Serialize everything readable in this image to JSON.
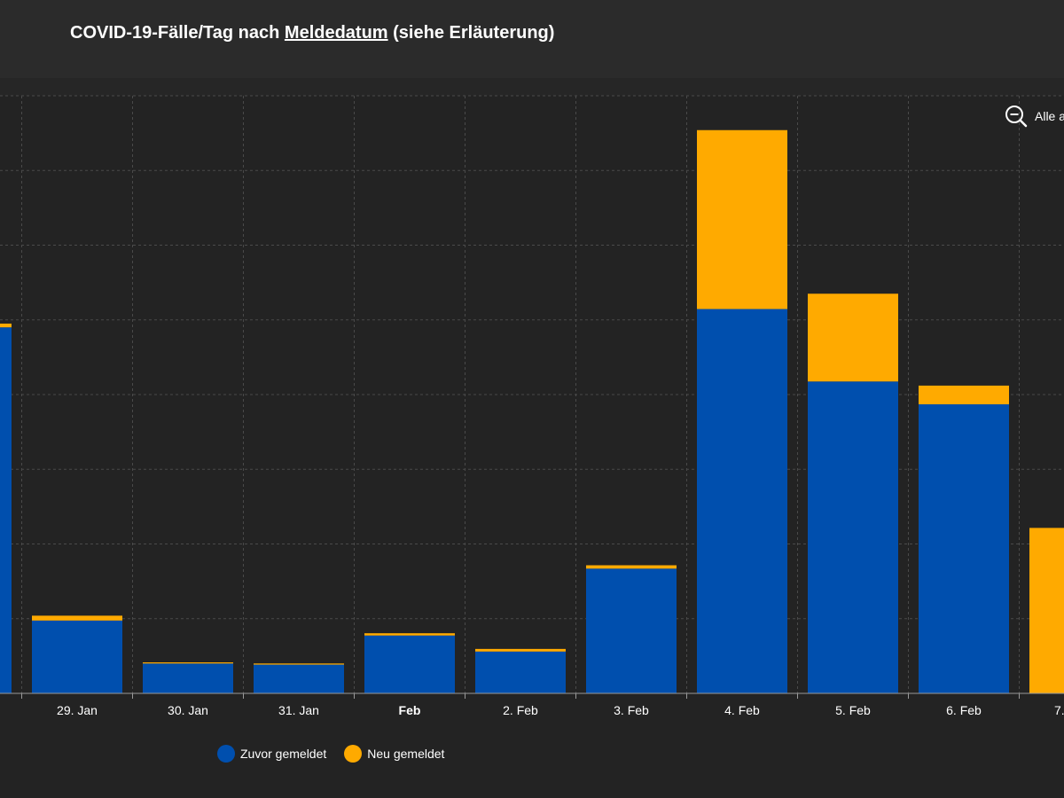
{
  "header": {
    "title_prefix": "COVID-19-Fälle/Tag nach ",
    "title_link": "Meldedatum",
    "title_suffix": " (siehe Erläuterung)"
  },
  "zoom": {
    "label": "Alle a"
  },
  "colors": {
    "previous": "#004FAE",
    "new": "#FFAA00",
    "background": "#232323",
    "grid": "#4a4a4a"
  },
  "chart_data": {
    "type": "bar",
    "stacked": true,
    "categories": [
      "",
      "29. Jan",
      "30. Jan",
      "31. Jan",
      "Feb",
      "2. Feb",
      "3. Feb",
      "4. Feb",
      "5. Feb",
      "6. Feb",
      "7."
    ],
    "bold_categories": [
      "Feb"
    ],
    "series": [
      {
        "name": "Zuvor gemeldet",
        "color": "#004FAE",
        "values": [
          9.8,
          1.95,
          0.8,
          0.77,
          1.55,
          1.12,
          3.34,
          10.29,
          8.35,
          7.74,
          0
        ]
      },
      {
        "name": "Neu gemeldet",
        "color": "#FFAA00",
        "values": [
          0.1,
          0.13,
          0.03,
          0.03,
          0.06,
          0.07,
          0.09,
          4.79,
          2.35,
          0.5,
          4.43
        ]
      }
    ],
    "ylim": [
      0,
      16
    ],
    "grid": true,
    "legend_position": "bottom-left"
  }
}
